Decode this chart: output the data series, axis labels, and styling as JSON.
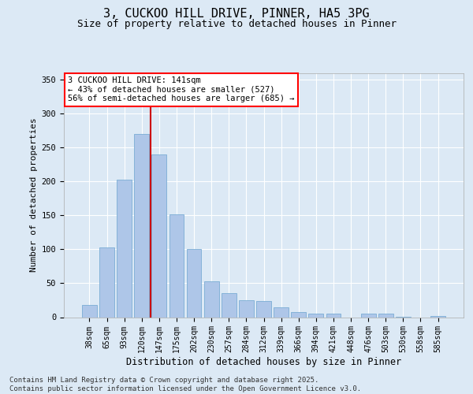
{
  "title1": "3, CUCKOO HILL DRIVE, PINNER, HA5 3PG",
  "title2": "Size of property relative to detached houses in Pinner",
  "xlabel": "Distribution of detached houses by size in Pinner",
  "ylabel": "Number of detached properties",
  "bins": [
    "38sqm",
    "65sqm",
    "93sqm",
    "120sqm",
    "147sqm",
    "175sqm",
    "202sqm",
    "230sqm",
    "257sqm",
    "284sqm",
    "312sqm",
    "339sqm",
    "366sqm",
    "394sqm",
    "421sqm",
    "448sqm",
    "476sqm",
    "503sqm",
    "530sqm",
    "558sqm",
    "585sqm"
  ],
  "values": [
    18,
    103,
    203,
    270,
    240,
    151,
    100,
    53,
    35,
    25,
    24,
    15,
    8,
    5,
    5,
    0,
    5,
    5,
    1,
    0,
    2
  ],
  "bar_color": "#aec6e8",
  "bar_edge_color": "#7aadd4",
  "vline_color": "#cc0000",
  "vline_x": 3.5,
  "annotation_text": "3 CUCKOO HILL DRIVE: 141sqm\n← 43% of detached houses are smaller (527)\n56% of semi-detached houses are larger (685) →",
  "ylim": [
    0,
    360
  ],
  "yticks": [
    0,
    50,
    100,
    150,
    200,
    250,
    300,
    350
  ],
  "bg_color": "#dce9f5",
  "footer": "Contains HM Land Registry data © Crown copyright and database right 2025.\nContains public sector information licensed under the Open Government Licence v3.0.",
  "title1_fontsize": 11,
  "title2_fontsize": 9,
  "ylabel_fontsize": 8,
  "xlabel_fontsize": 8.5,
  "tick_fontsize": 7,
  "annot_fontsize": 7.5,
  "footer_fontsize": 6.5
}
